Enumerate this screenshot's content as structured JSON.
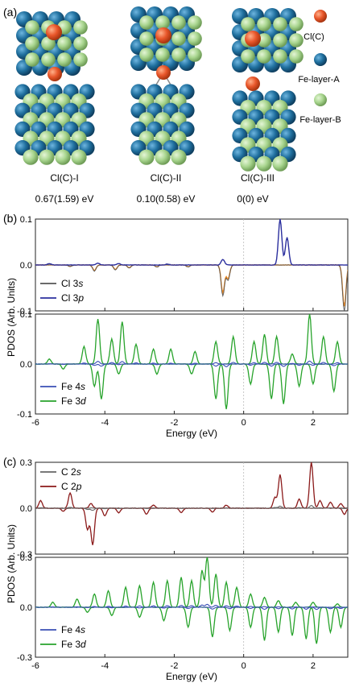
{
  "panel_a": {
    "label": "(a)",
    "structures": [
      {
        "name": "Cl(C)-I",
        "energy": "0.67(1.59) eV"
      },
      {
        "name": "Cl(C)-II",
        "energy": "0.10(0.58) eV"
      },
      {
        "name": "Cl(C)-III",
        "energy": "0(0) eV"
      }
    ],
    "legend": [
      {
        "label": "Cl(C)",
        "color": "#e8562a"
      },
      {
        "label": "Fe-layer-A",
        "color": "#1f6f9e"
      },
      {
        "label": "Fe-layer-B",
        "color": "#a8d58e"
      }
    ]
  },
  "chart_data": [
    {
      "panel_label": "(b)",
      "type": "line",
      "xlim": [
        -6,
        3
      ],
      "ylim": [
        -0.1,
        0.1
      ],
      "ticks_y": [
        "0.1",
        "0.0",
        "-0.1"
      ],
      "legend": [
        {
          "label": "Cl 3",
          "orb": "s",
          "color": "#555555"
        },
        {
          "label": "Cl 3",
          "orb": "p",
          "color": "#2b2f9e"
        }
      ],
      "mirror_color": "#f28a1e",
      "peaks_up": [
        [
          -5.6,
          0.003
        ],
        [
          -4.2,
          0.004
        ],
        [
          -3.6,
          0.003
        ],
        [
          -2.2,
          0.002
        ],
        [
          -0.6,
          0.012
        ],
        [
          1.05,
          0.1
        ],
        [
          1.25,
          0.06
        ]
      ],
      "peaks_down": [
        [
          -5.0,
          -0.003
        ],
        [
          -4.3,
          -0.012
        ],
        [
          -3.7,
          -0.01
        ],
        [
          -3.3,
          -0.006
        ],
        [
          -2.5,
          -0.004
        ],
        [
          -1.6,
          -0.004
        ],
        [
          -0.6,
          -0.06
        ],
        [
          -0.45,
          -0.03
        ],
        [
          2.9,
          -0.09
        ]
      ]
    },
    {
      "panel_label": "",
      "type": "line",
      "xlim": [
        -6,
        3
      ],
      "ylim": [
        -0.1,
        0.1
      ],
      "ticks_y": [
        "0.1",
        "0.0",
        "-0.1"
      ],
      "xticks": [
        "-6",
        "-4",
        "-2",
        "0",
        "2"
      ],
      "xlabel": "Energy (eV)",
      "legend": [
        {
          "label": "Fe 4",
          "orb": "s",
          "color": "#3a4fb5"
        },
        {
          "label": "Fe 3",
          "orb": "d",
          "color": "#27a32b"
        }
      ],
      "peaks_up": [
        [
          -5.6,
          0.01
        ],
        [
          -4.6,
          0.035
        ],
        [
          -4.2,
          0.09
        ],
        [
          -3.8,
          0.05
        ],
        [
          -3.5,
          0.085
        ],
        [
          -3.1,
          0.04
        ],
        [
          -2.6,
          0.03
        ],
        [
          -2.1,
          0.03
        ],
        [
          -1.4,
          0.025
        ],
        [
          -0.8,
          0.045
        ],
        [
          -0.3,
          0.055
        ],
        [
          0.3,
          0.045
        ],
        [
          0.6,
          0.06
        ],
        [
          0.95,
          0.055
        ],
        [
          1.4,
          0.02
        ],
        [
          1.9,
          0.1
        ],
        [
          2.3,
          0.055
        ],
        [
          2.7,
          0.045
        ]
      ],
      "peaks_down": [
        [
          -5.2,
          -0.01
        ],
        [
          -4.3,
          -0.045
        ],
        [
          -4.1,
          -0.07
        ],
        [
          -3.6,
          -0.02
        ],
        [
          -2.5,
          -0.02
        ],
        [
          -1.5,
          -0.02
        ],
        [
          -0.8,
          -0.07
        ],
        [
          -0.5,
          -0.09
        ],
        [
          0.2,
          -0.04
        ],
        [
          0.8,
          -0.07
        ],
        [
          1.15,
          -0.08
        ],
        [
          1.6,
          -0.045
        ],
        [
          2.0,
          -0.04
        ],
        [
          2.6,
          -0.055
        ]
      ]
    },
    {
      "panel_label": "(c)",
      "type": "line",
      "xlim": [
        -6,
        3
      ],
      "ylim": [
        -0.3,
        0.3
      ],
      "ticks_y": [
        "0.3",
        "0.0",
        "-0.3"
      ],
      "legend": [
        {
          "label": "C 2",
          "orb": "s",
          "color": "#666666"
        },
        {
          "label": "C 2",
          "orb": "p",
          "color": "#8b1a1a"
        }
      ],
      "peaks_up": [
        [
          -5.85,
          0.05
        ],
        [
          -5.0,
          0.1
        ],
        [
          -4.4,
          0.03
        ],
        [
          -2.6,
          0.02
        ],
        [
          -0.5,
          0.02
        ],
        [
          0.9,
          0.07
        ],
        [
          1.05,
          0.22
        ],
        [
          1.6,
          0.06
        ],
        [
          1.95,
          0.3
        ],
        [
          2.2,
          0.05
        ],
        [
          2.5,
          0.04
        ],
        [
          2.8,
          0.03
        ]
      ],
      "peaks_down": [
        [
          -5.2,
          -0.02
        ],
        [
          -4.5,
          -0.14
        ],
        [
          -4.35,
          -0.24
        ],
        [
          -4.0,
          -0.05
        ],
        [
          -3.6,
          -0.03
        ],
        [
          -2.8,
          -0.04
        ],
        [
          -1.8,
          -0.03
        ],
        [
          -0.9,
          -0.025
        ],
        [
          2.9,
          -0.04
        ]
      ]
    },
    {
      "panel_label": "",
      "type": "line",
      "xlim": [
        -6,
        3
      ],
      "ylim": [
        -0.3,
        0.3
      ],
      "ticks_y": [
        "0.3",
        "0.0",
        "-0.3"
      ],
      "xticks": [
        "-6",
        "-4",
        "-2",
        "0",
        "2"
      ],
      "xlabel": "Energy (eV)",
      "legend": [
        {
          "label": "Fe 4",
          "orb": "s",
          "color": "#3a4fb5"
        },
        {
          "label": "Fe 3",
          "orb": "d",
          "color": "#27a32b"
        }
      ],
      "peaks_up": [
        [
          -5.5,
          0.03
        ],
        [
          -4.8,
          0.05
        ],
        [
          -4.3,
          0.08
        ],
        [
          -3.9,
          0.1
        ],
        [
          -3.4,
          0.12
        ],
        [
          -3.0,
          0.13
        ],
        [
          -2.6,
          0.15
        ],
        [
          -2.2,
          0.16
        ],
        [
          -1.8,
          0.18
        ],
        [
          -1.5,
          0.16
        ],
        [
          -1.2,
          0.22
        ],
        [
          -1.05,
          0.3
        ],
        [
          -0.8,
          0.2
        ],
        [
          -0.5,
          0.15
        ],
        [
          -0.2,
          0.12
        ],
        [
          0.2,
          0.08
        ],
        [
          0.6,
          0.06
        ],
        [
          1.0,
          0.04
        ],
        [
          1.5,
          0.03
        ],
        [
          2.0,
          0.03
        ],
        [
          2.7,
          0.02
        ]
      ],
      "peaks_down": [
        [
          -4.5,
          -0.03
        ],
        [
          -3.8,
          -0.05
        ],
        [
          -3.0,
          -0.06
        ],
        [
          -2.3,
          -0.08
        ],
        [
          -1.6,
          -0.12
        ],
        [
          -0.9,
          -0.18
        ],
        [
          -0.4,
          -0.14
        ],
        [
          0.2,
          -0.12
        ],
        [
          0.6,
          -0.2
        ],
        [
          1.0,
          -0.15
        ],
        [
          1.4,
          -0.17
        ],
        [
          1.8,
          -0.19
        ],
        [
          2.1,
          -0.22
        ],
        [
          2.5,
          -0.15
        ],
        [
          2.8,
          -0.12
        ]
      ]
    }
  ],
  "shared": {
    "ylabel_b": "PDOS (Arb. Units)",
    "ylabel_c": "PDOS (Arb. Units)"
  }
}
